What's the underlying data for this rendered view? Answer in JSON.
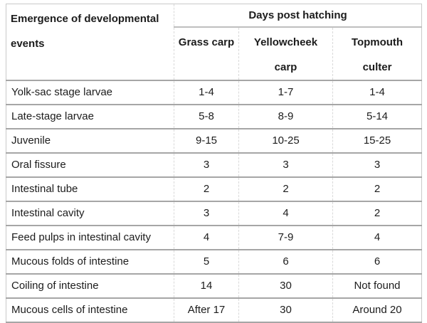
{
  "table": {
    "corner_header": "Emergence of developmental events",
    "group_header": "Days post hatching",
    "column_headers": [
      "Grass carp",
      "Yellowcheek carp",
      "Topmouth culter"
    ],
    "rows": [
      {
        "label": "Yolk-sac stage larvae",
        "values": [
          "1-4",
          "1-7",
          "1-4"
        ]
      },
      {
        "label": "Late-stage larvae",
        "values": [
          "5-8",
          "8-9",
          "5-14"
        ]
      },
      {
        "label": "Juvenile",
        "values": [
          "9-15",
          "10-25",
          "15-25"
        ]
      },
      {
        "label": "Oral fissure",
        "values": [
          "3",
          "3",
          "3"
        ]
      },
      {
        "label": "Intestinal tube",
        "values": [
          "2",
          "2",
          "2"
        ]
      },
      {
        "label": "Intestinal cavity",
        "values": [
          "3",
          "4",
          "2"
        ]
      },
      {
        "label": "Feed pulps in intestinal cavity",
        "values": [
          "4",
          "7-9",
          "4"
        ]
      },
      {
        "label": "Mucous folds of intestine",
        "values": [
          "5",
          "6",
          "6"
        ]
      },
      {
        "label": "Coiling of intestine",
        "values": [
          "14",
          "30",
          "Not found"
        ]
      },
      {
        "label": "Mucous cells of intestine",
        "values": [
          "After 17",
          "30",
          "Around 20"
        ]
      }
    ]
  },
  "colors": {
    "background": "#ffffff",
    "text": "#1c1c1c",
    "row_border": "#a6a6a6",
    "subheader_border": "#bfbfbf",
    "column_border": "#d9d9d9",
    "outer_border": "#c9c9c9"
  }
}
